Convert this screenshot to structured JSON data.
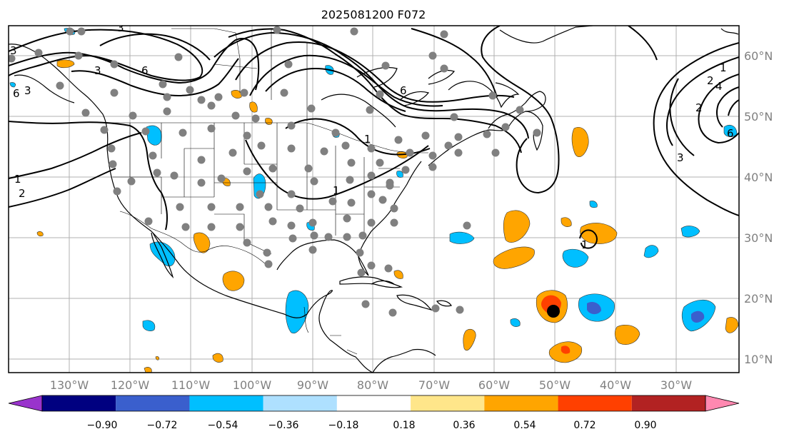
{
  "title": "2025081200 F072",
  "lon_labels": [
    "130°W",
    "120°W",
    "110°W",
    "100°W",
    "90°W",
    "80°W",
    "70°W",
    "60°W",
    "50°W",
    "40°W",
    "30°W"
  ],
  "lat_labels": [
    "60°N",
    "50°N",
    "40°N",
    "30°N",
    "20°N",
    "10°N"
  ],
  "colorbar": {
    "ticks": [
      "−0.90",
      "−0.72",
      "−0.54",
      "−0.36",
      "−0.18",
      "0.18",
      "0.36",
      "0.54",
      "0.72",
      "0.90"
    ],
    "colors": [
      "#9933cc",
      "#000080",
      "#3a5fcd",
      "#00bfff",
      "#aee0ff",
      "#ffffff",
      "#ffe68a",
      "#ffa500",
      "#ff4000",
      "#b22222",
      "#ff88b0"
    ]
  },
  "contour_labels": [
    "3",
    "3",
    "6",
    "6",
    "3",
    "6",
    "3",
    "1",
    "1",
    "2",
    "1",
    "2",
    "4",
    "2",
    "3",
    "6",
    "1",
    "1"
  ],
  "colors": {
    "coast": "#000000",
    "contour": "#000000",
    "grid": "#b0b0b0",
    "station": "#808080",
    "axis_label": "#808080"
  }
}
